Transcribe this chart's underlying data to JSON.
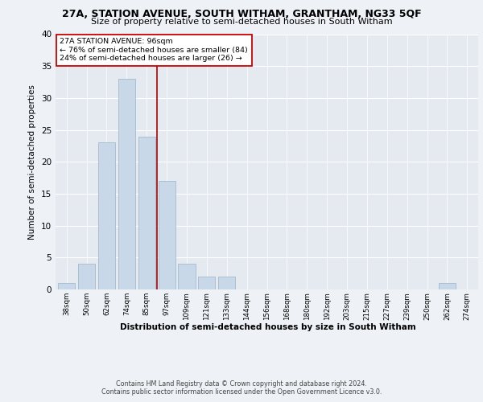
{
  "title1": "27A, STATION AVENUE, SOUTH WITHAM, GRANTHAM, NG33 5QF",
  "title2": "Size of property relative to semi-detached houses in South Witham",
  "xlabel": "Distribution of semi-detached houses by size in South Witham",
  "ylabel": "Number of semi-detached properties",
  "categories": [
    "38sqm",
    "50sqm",
    "62sqm",
    "74sqm",
    "85sqm",
    "97sqm",
    "109sqm",
    "121sqm",
    "133sqm",
    "144sqm",
    "156sqm",
    "168sqm",
    "180sqm",
    "192sqm",
    "203sqm",
    "215sqm",
    "227sqm",
    "239sqm",
    "250sqm",
    "262sqm",
    "274sqm"
  ],
  "values": [
    1,
    4,
    23,
    33,
    24,
    17,
    4,
    2,
    2,
    0,
    0,
    0,
    0,
    0,
    0,
    0,
    0,
    0,
    0,
    1,
    0
  ],
  "bar_color": "#c8d8e8",
  "bar_edge_color": "#9ab4c8",
  "vline_color": "#aa0000",
  "annotation_text": "27A STATION AVENUE: 96sqm\n← 76% of semi-detached houses are smaller (84)\n24% of semi-detached houses are larger (26) →",
  "annotation_box_color": "#ffffff",
  "annotation_box_edge": "#cc0000",
  "ylim": [
    0,
    40
  ],
  "yticks": [
    0,
    5,
    10,
    15,
    20,
    25,
    30,
    35,
    40
  ],
  "footer": "Contains HM Land Registry data © Crown copyright and database right 2024.\nContains public sector information licensed under the Open Government Licence v3.0.",
  "bg_color": "#eef2f6",
  "plot_bg_color": "#e4eaf0"
}
